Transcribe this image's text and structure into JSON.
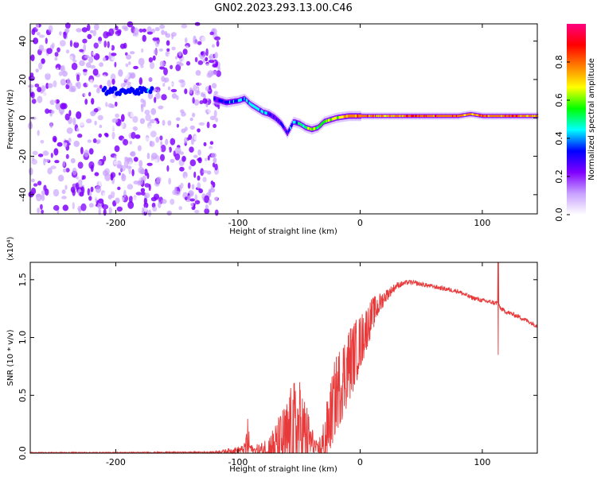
{
  "figure_title": "GN02.2023.293.13.00.C46",
  "chart_data": [
    {
      "type": "heatmap",
      "xlabel": "Height of straight line (km)",
      "ylabel": "Frequency (Hz)",
      "xlim": [
        -270,
        145
      ],
      "ylim": [
        -50,
        49
      ],
      "xticks": [
        -200,
        -100,
        0,
        100
      ],
      "yticks": [
        -40,
        -20,
        0,
        20,
        40
      ],
      "colorbar": {
        "label": "Normalized spectral amplitude",
        "range": [
          0,
          1
        ],
        "ticks": [
          "0.0",
          "0.2",
          "0.4",
          "0.6",
          "0.8"
        ],
        "colormap": [
          "#ffffff",
          "#c8a0ff",
          "#8000ff",
          "#0000ff",
          "#00ffff",
          "#00ff00",
          "#ffff00",
          "#ff8000",
          "#ff0000",
          "#ff0080"
        ]
      },
      "noise_region": {
        "x_range": [
          -270,
          -115
        ],
        "amplitude": [
          0.05,
          0.3
        ]
      },
      "ridge": {
        "x": [
          -120,
          -110,
          -100,
          -95,
          -90,
          -85,
          -80,
          -75,
          -70,
          -65,
          -60,
          -55,
          -50,
          -45,
          -40,
          -35,
          -30,
          -20,
          -10,
          0,
          20,
          40,
          60,
          80,
          90,
          100,
          110,
          120,
          145
        ],
        "frequency": [
          10,
          8,
          9,
          10,
          7,
          5,
          3,
          2,
          0,
          -3,
          -8,
          -2,
          -3,
          -5,
          -6,
          -5,
          -2,
          0,
          1,
          1,
          1,
          1,
          1,
          1,
          2,
          1,
          1,
          1,
          1
        ],
        "amplitude": [
          0.3,
          0.4,
          0.45,
          0.4,
          0.45,
          0.5,
          0.45,
          0.4,
          0.35,
          0.4,
          0.35,
          0.45,
          0.5,
          0.6,
          0.65,
          0.6,
          0.65,
          0.7,
          0.8,
          0.85,
          0.8,
          0.85,
          0.85,
          0.85,
          0.8,
          0.85,
          0.8,
          0.85,
          0.8
        ]
      },
      "early_band": {
        "x_range": [
          -210,
          -170
        ],
        "frequency": 14,
        "amplitude": 0.35
      }
    },
    {
      "type": "line",
      "xlabel": "Height of straight line (km)",
      "ylabel": "SNR (10 * v/v)",
      "y_scale_label": "(x10⁴)",
      "xlim": [
        -270,
        145
      ],
      "ylim": [
        0,
        1.65
      ],
      "xticks": [
        -200,
        -100,
        0,
        100
      ],
      "yticks": [
        "0.0",
        "0.5",
        "1.0",
        "1.5"
      ],
      "series": [
        {
          "color": "#e83a3a",
          "x": [
            -270,
            -200,
            -120,
            -95,
            -92,
            -90,
            -88,
            -80,
            -70,
            -60,
            -55,
            -50,
            -45,
            -40,
            -35,
            -30,
            -20,
            -10,
            0,
            10,
            20,
            30,
            40,
            50,
            60,
            70,
            80,
            90,
            100,
            110,
            113,
            115,
            120,
            130,
            145
          ],
          "base": [
            0.005,
            0.005,
            0.008,
            0.03,
            0.1,
            0.05,
            0.02,
            0.02,
            0.05,
            0.12,
            0.18,
            0.2,
            0.15,
            0.1,
            0.03,
            0.05,
            0.5,
            0.75,
            0.95,
            1.2,
            1.35,
            1.45,
            1.48,
            1.46,
            1.44,
            1.42,
            1.4,
            1.35,
            1.32,
            1.3,
            1.3,
            1.25,
            1.22,
            1.18,
            1.1
          ],
          "noise": [
            0.004,
            0.004,
            0.006,
            0.04,
            0.2,
            0.06,
            0.04,
            0.08,
            0.2,
            0.35,
            0.45,
            0.45,
            0.35,
            0.15,
            0.05,
            0.25,
            0.35,
            0.35,
            0.25,
            0.15,
            0.06,
            0.03,
            0.02,
            0.02,
            0.02,
            0.02,
            0.02,
            0.02,
            0.02,
            0.02,
            0.02,
            0.02,
            0.02,
            0.02,
            0.02
          ]
        }
      ],
      "spike": {
        "x": 113,
        "low": 0.85,
        "high": 1.65
      }
    }
  ]
}
